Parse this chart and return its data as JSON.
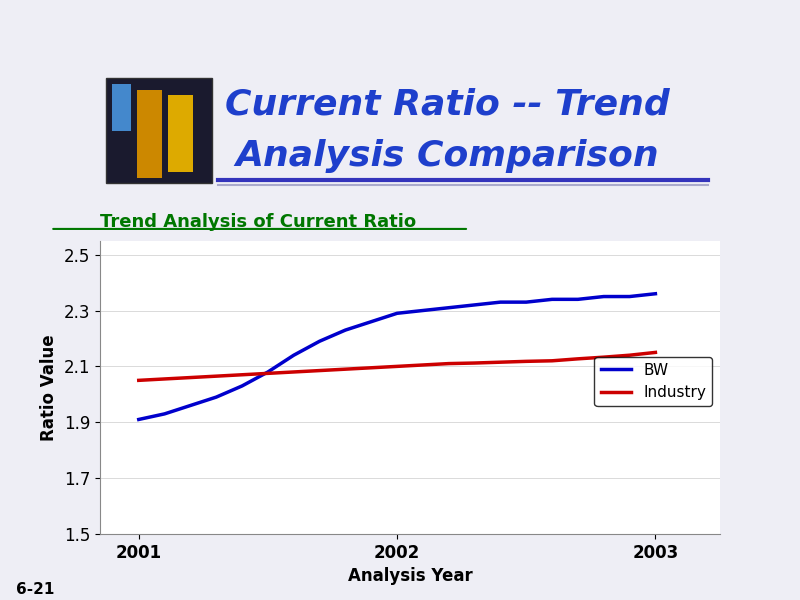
{
  "header_title_line1": "Current Ratio -- Trend",
  "header_title_line2": "Analysis Comparison",
  "header_title_color": "#1e3fcc",
  "chart_subtitle": "Trend Analysis of Current Ratio",
  "chart_subtitle_color": "#007700",
  "xlabel": "Analysis Year",
  "ylabel": "Ratio Value",
  "footnote": "6-21",
  "bw_x": [
    2001,
    2001.1,
    2001.2,
    2001.3,
    2001.4,
    2001.5,
    2001.6,
    2001.7,
    2001.8,
    2001.9,
    2002.0,
    2002.1,
    2002.2,
    2002.3,
    2002.4,
    2002.5,
    2002.6,
    2002.7,
    2002.8,
    2002.9,
    2003.0
  ],
  "bw_y": [
    1.91,
    1.93,
    1.96,
    1.99,
    2.03,
    2.08,
    2.14,
    2.19,
    2.23,
    2.26,
    2.29,
    2.3,
    2.31,
    2.32,
    2.33,
    2.33,
    2.34,
    2.34,
    2.35,
    2.35,
    2.36
  ],
  "industry_x": [
    2001,
    2001.1,
    2001.2,
    2001.3,
    2001.4,
    2001.5,
    2001.6,
    2001.7,
    2001.8,
    2001.9,
    2002.0,
    2002.1,
    2002.2,
    2002.3,
    2002.4,
    2002.5,
    2002.6,
    2002.7,
    2002.8,
    2002.9,
    2003.0
  ],
  "industry_y": [
    2.05,
    2.055,
    2.06,
    2.065,
    2.07,
    2.075,
    2.08,
    2.085,
    2.09,
    2.095,
    2.1,
    2.105,
    2.11,
    2.112,
    2.115,
    2.118,
    2.12,
    2.127,
    2.133,
    2.14,
    2.15
  ],
  "bw_color": "#0000cc",
  "industry_color": "#cc0000",
  "ylim": [
    1.5,
    2.55
  ],
  "yticks": [
    1.5,
    1.7,
    1.9,
    2.1,
    2.3,
    2.5
  ],
  "xlim": [
    2000.85,
    2003.25
  ],
  "xticks": [
    2001,
    2002,
    2003
  ],
  "bg_color": "#eeeef5",
  "plot_bg_color": "#ffffff",
  "line_width": 2.5,
  "header_bg_color": "#dde0f0",
  "separator_color": "#3333bb",
  "separator_color2": "#aaaacc"
}
